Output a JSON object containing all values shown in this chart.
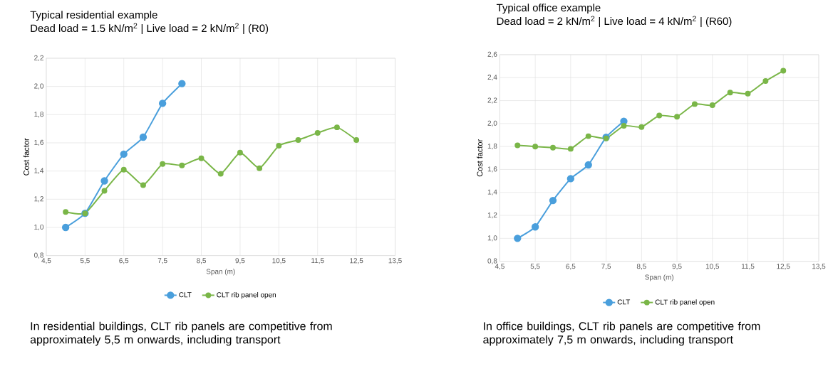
{
  "chart_data": [
    {
      "type": "line",
      "title": "Typical residential example",
      "subtitle": "Dead load = 1.5 kN/m$^{2}$ | Live load = 2 kN/m$^{2}$ | (R0)",
      "xlabel": "Span (m)",
      "ylabel": "Cost factor",
      "x": [
        5,
        5.5,
        6,
        6.5,
        7,
        7.5,
        8,
        8.5,
        9,
        9.5,
        10,
        10.5,
        11,
        11.5,
        12,
        12.5
      ],
      "series": [
        {
          "name": "CLT",
          "color": "#4a9fdc",
          "values": [
            1.0,
            1.1,
            1.33,
            1.52,
            1.64,
            1.88,
            2.02,
            null,
            null,
            null,
            null,
            null,
            null,
            null,
            null,
            null
          ]
        },
        {
          "name": "CLT rib panel open",
          "color": "#7ab648",
          "values": [
            1.11,
            1.1,
            1.26,
            1.41,
            1.3,
            1.45,
            1.44,
            1.49,
            1.38,
            1.53,
            1.42,
            1.58,
            1.62,
            1.67,
            1.71,
            1.62
          ]
        }
      ],
      "xlim": [
        4.5,
        13.5
      ],
      "ylim": [
        0.8,
        2.2
      ],
      "xticks": [
        {
          "value": 4.5,
          "label": "4,5"
        },
        {
          "value": 5.5,
          "label": "5,5"
        },
        {
          "value": 6.5,
          "label": "6,5"
        },
        {
          "value": 7.5,
          "label": "7,5"
        },
        {
          "value": 8.5,
          "label": "8,5"
        },
        {
          "value": 9.5,
          "label": "9,5"
        },
        {
          "value": 10.5,
          "label": "10,5"
        },
        {
          "value": 11.5,
          "label": "11,5"
        },
        {
          "value": 12.5,
          "label": "12,5"
        },
        {
          "value": 13.5,
          "label": "13,5"
        }
      ],
      "yticks": [
        {
          "value": 0.8,
          "label": "0,8"
        },
        {
          "value": 1.0,
          "label": "1,0"
        },
        {
          "value": 1.2,
          "label": "1,2"
        },
        {
          "value": 1.4,
          "label": "1,4"
        },
        {
          "value": 1.6,
          "label": "1,6"
        },
        {
          "value": 1.8,
          "label": "1,8"
        },
        {
          "value": 2.0,
          "label": "2,0"
        },
        {
          "value": 2.2,
          "label": "2,2"
        }
      ],
      "grid": true,
      "legend": "bottom",
      "marker": "circle",
      "line_style": "solid",
      "annotations": [
        "In residential buildings, CLT rib panels are competitive from approximately 5,5 m onwards, including transport"
      ]
    },
    {
      "type": "line",
      "title": "Typical office example",
      "subtitle": "Dead load = 2 kN/m$^{2}$ | Live load = 4 kN/m$^{2}$ | (R60)",
      "xlabel": "Span (m)",
      "ylabel": "Cost factor",
      "x": [
        5,
        5.5,
        6,
        6.5,
        7,
        7.5,
        8,
        8.5,
        9,
        9.5,
        10,
        10.5,
        11,
        11.5,
        12,
        12.5
      ],
      "series": [
        {
          "name": "CLT",
          "color": "#4a9fdc",
          "values": [
            1.0,
            1.1,
            1.33,
            1.52,
            1.64,
            1.88,
            2.02,
            null,
            null,
            null,
            null,
            null,
            null,
            null,
            null,
            null
          ]
        },
        {
          "name": "CLT rib panel open",
          "color": "#7ab648",
          "values": [
            1.81,
            1.8,
            1.79,
            1.78,
            1.89,
            1.87,
            1.98,
            1.97,
            2.07,
            2.06,
            2.17,
            2.16,
            2.27,
            2.26,
            2.37,
            2.46
          ]
        }
      ],
      "xlim": [
        4.5,
        13.5
      ],
      "ylim": [
        0.8,
        2.6
      ],
      "xticks": [
        {
          "value": 4.5,
          "label": "4,5"
        },
        {
          "value": 5.5,
          "label": "5,5"
        },
        {
          "value": 6.5,
          "label": "6,5"
        },
        {
          "value": 7.5,
          "label": "7,5"
        },
        {
          "value": 8.5,
          "label": "8,5"
        },
        {
          "value": 9.5,
          "label": "9,5"
        },
        {
          "value": 10.5,
          "label": "10,5"
        },
        {
          "value": 11.5,
          "label": "11,5"
        },
        {
          "value": 12.5,
          "label": "12,5"
        },
        {
          "value": 13.5,
          "label": "13,5"
        }
      ],
      "yticks": [
        {
          "value": 0.8,
          "label": "0,8"
        },
        {
          "value": 1.0,
          "label": "1,0"
        },
        {
          "value": 1.2,
          "label": "1,2"
        },
        {
          "value": 1.4,
          "label": "1,4"
        },
        {
          "value": 1.6,
          "label": "1,6"
        },
        {
          "value": 1.8,
          "label": "1,8"
        },
        {
          "value": 2.0,
          "label": "2,0"
        },
        {
          "value": 2.2,
          "label": "2,2"
        },
        {
          "value": 2.4,
          "label": "2,4"
        },
        {
          "value": 2.6,
          "label": "2,6"
        }
      ],
      "grid": true,
      "legend": "bottom",
      "marker": "circle",
      "line_style": "solid",
      "annotations": [
        "In office buildings, CLT rib panels are competitive from approximately 7,5 m onwards, including transport"
      ]
    }
  ]
}
